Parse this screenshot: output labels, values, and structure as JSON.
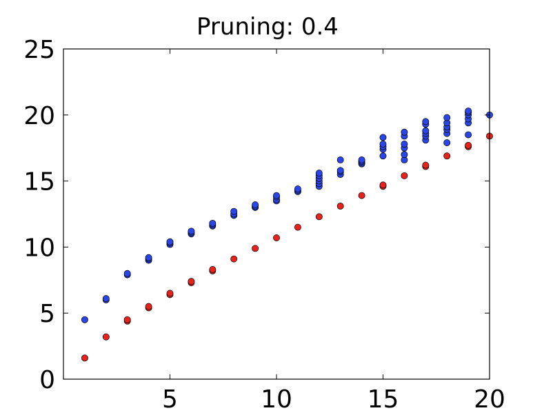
{
  "chart_data": {
    "type": "scatter",
    "title": "Pruning: 0.4",
    "xlabel": "",
    "ylabel": "",
    "xlim": [
      0,
      20
    ],
    "ylim": [
      0,
      25
    ],
    "xticks": [
      5,
      10,
      15,
      20
    ],
    "yticks": [
      0,
      5,
      10,
      15,
      20,
      25
    ],
    "grid": false,
    "colors": {
      "blue": "#2a46e8",
      "red": "#e8231d",
      "edge": "#000000"
    },
    "series": [
      {
        "color": "blue",
        "points": [
          [
            1,
            4.5
          ],
          [
            2,
            6.0
          ],
          [
            2,
            6.1
          ],
          [
            3,
            7.9
          ],
          [
            3,
            8.0
          ],
          [
            4,
            9.0
          ],
          [
            4,
            9.1
          ],
          [
            4,
            9.2
          ],
          [
            5,
            10.2
          ],
          [
            5,
            10.3
          ],
          [
            5,
            10.4
          ],
          [
            6,
            11.0
          ],
          [
            6,
            11.1
          ],
          [
            6,
            11.2
          ],
          [
            7,
            11.6
          ],
          [
            7,
            11.7
          ],
          [
            7,
            11.8
          ],
          [
            8,
            12.4
          ],
          [
            8,
            12.5
          ],
          [
            8,
            12.7
          ],
          [
            9,
            13.0
          ],
          [
            9,
            13.1
          ],
          [
            9,
            13.2
          ],
          [
            10,
            13.5
          ],
          [
            10,
            13.6
          ],
          [
            10,
            13.8
          ],
          [
            10,
            13.9
          ],
          [
            11,
            14.2
          ],
          [
            11,
            14.3
          ],
          [
            11,
            14.4
          ],
          [
            12,
            14.6
          ],
          [
            12,
            14.8
          ],
          [
            12,
            15.0
          ],
          [
            12,
            15.2
          ],
          [
            12,
            15.4
          ],
          [
            12,
            15.6
          ],
          [
            13,
            15.5
          ],
          [
            13,
            15.7
          ],
          [
            13,
            15.8
          ],
          [
            13,
            16.6
          ],
          [
            14,
            16.3
          ],
          [
            14,
            16.4
          ],
          [
            14,
            16.5
          ],
          [
            14,
            16.6
          ],
          [
            15,
            16.9
          ],
          [
            15,
            17.4
          ],
          [
            15,
            17.6
          ],
          [
            15,
            17.8
          ],
          [
            15,
            18.3
          ],
          [
            16,
            16.6
          ],
          [
            16,
            17.0
          ],
          [
            16,
            17.5
          ],
          [
            16,
            17.8
          ],
          [
            16,
            18.4
          ],
          [
            16,
            18.7
          ],
          [
            17,
            18.1
          ],
          [
            17,
            18.4
          ],
          [
            17,
            18.6
          ],
          [
            17,
            18.8
          ],
          [
            17,
            19.3
          ],
          [
            17,
            19.5
          ],
          [
            18,
            17.9
          ],
          [
            18,
            18.6
          ],
          [
            18,
            18.9
          ],
          [
            18,
            19.1
          ],
          [
            18,
            19.4
          ],
          [
            18,
            19.8
          ],
          [
            19,
            18.5
          ],
          [
            19,
            19.4
          ],
          [
            19,
            19.7
          ],
          [
            19,
            20.0
          ],
          [
            19,
            20.2
          ],
          [
            19,
            20.3
          ],
          [
            20,
            20.0
          ]
        ]
      },
      {
        "color": "red",
        "points": [
          [
            1,
            1.6
          ],
          [
            2,
            3.2
          ],
          [
            3,
            4.4
          ],
          [
            3,
            4.5
          ],
          [
            4,
            5.4
          ],
          [
            4,
            5.5
          ],
          [
            5,
            6.4
          ],
          [
            5,
            6.5
          ],
          [
            6,
            7.3
          ],
          [
            6,
            7.4
          ],
          [
            7,
            8.2
          ],
          [
            7,
            8.3
          ],
          [
            8,
            9.1
          ],
          [
            9,
            9.9
          ],
          [
            10,
            10.7
          ],
          [
            11,
            11.5
          ],
          [
            12,
            12.3
          ],
          [
            13,
            13.1
          ],
          [
            14,
            13.9
          ],
          [
            15,
            14.6
          ],
          [
            15,
            14.7
          ],
          [
            16,
            15.4
          ],
          [
            17,
            16.1
          ],
          [
            17,
            16.2
          ],
          [
            18,
            16.9
          ],
          [
            19,
            17.6
          ],
          [
            19,
            17.7
          ],
          [
            20,
            18.4
          ]
        ]
      }
    ]
  }
}
